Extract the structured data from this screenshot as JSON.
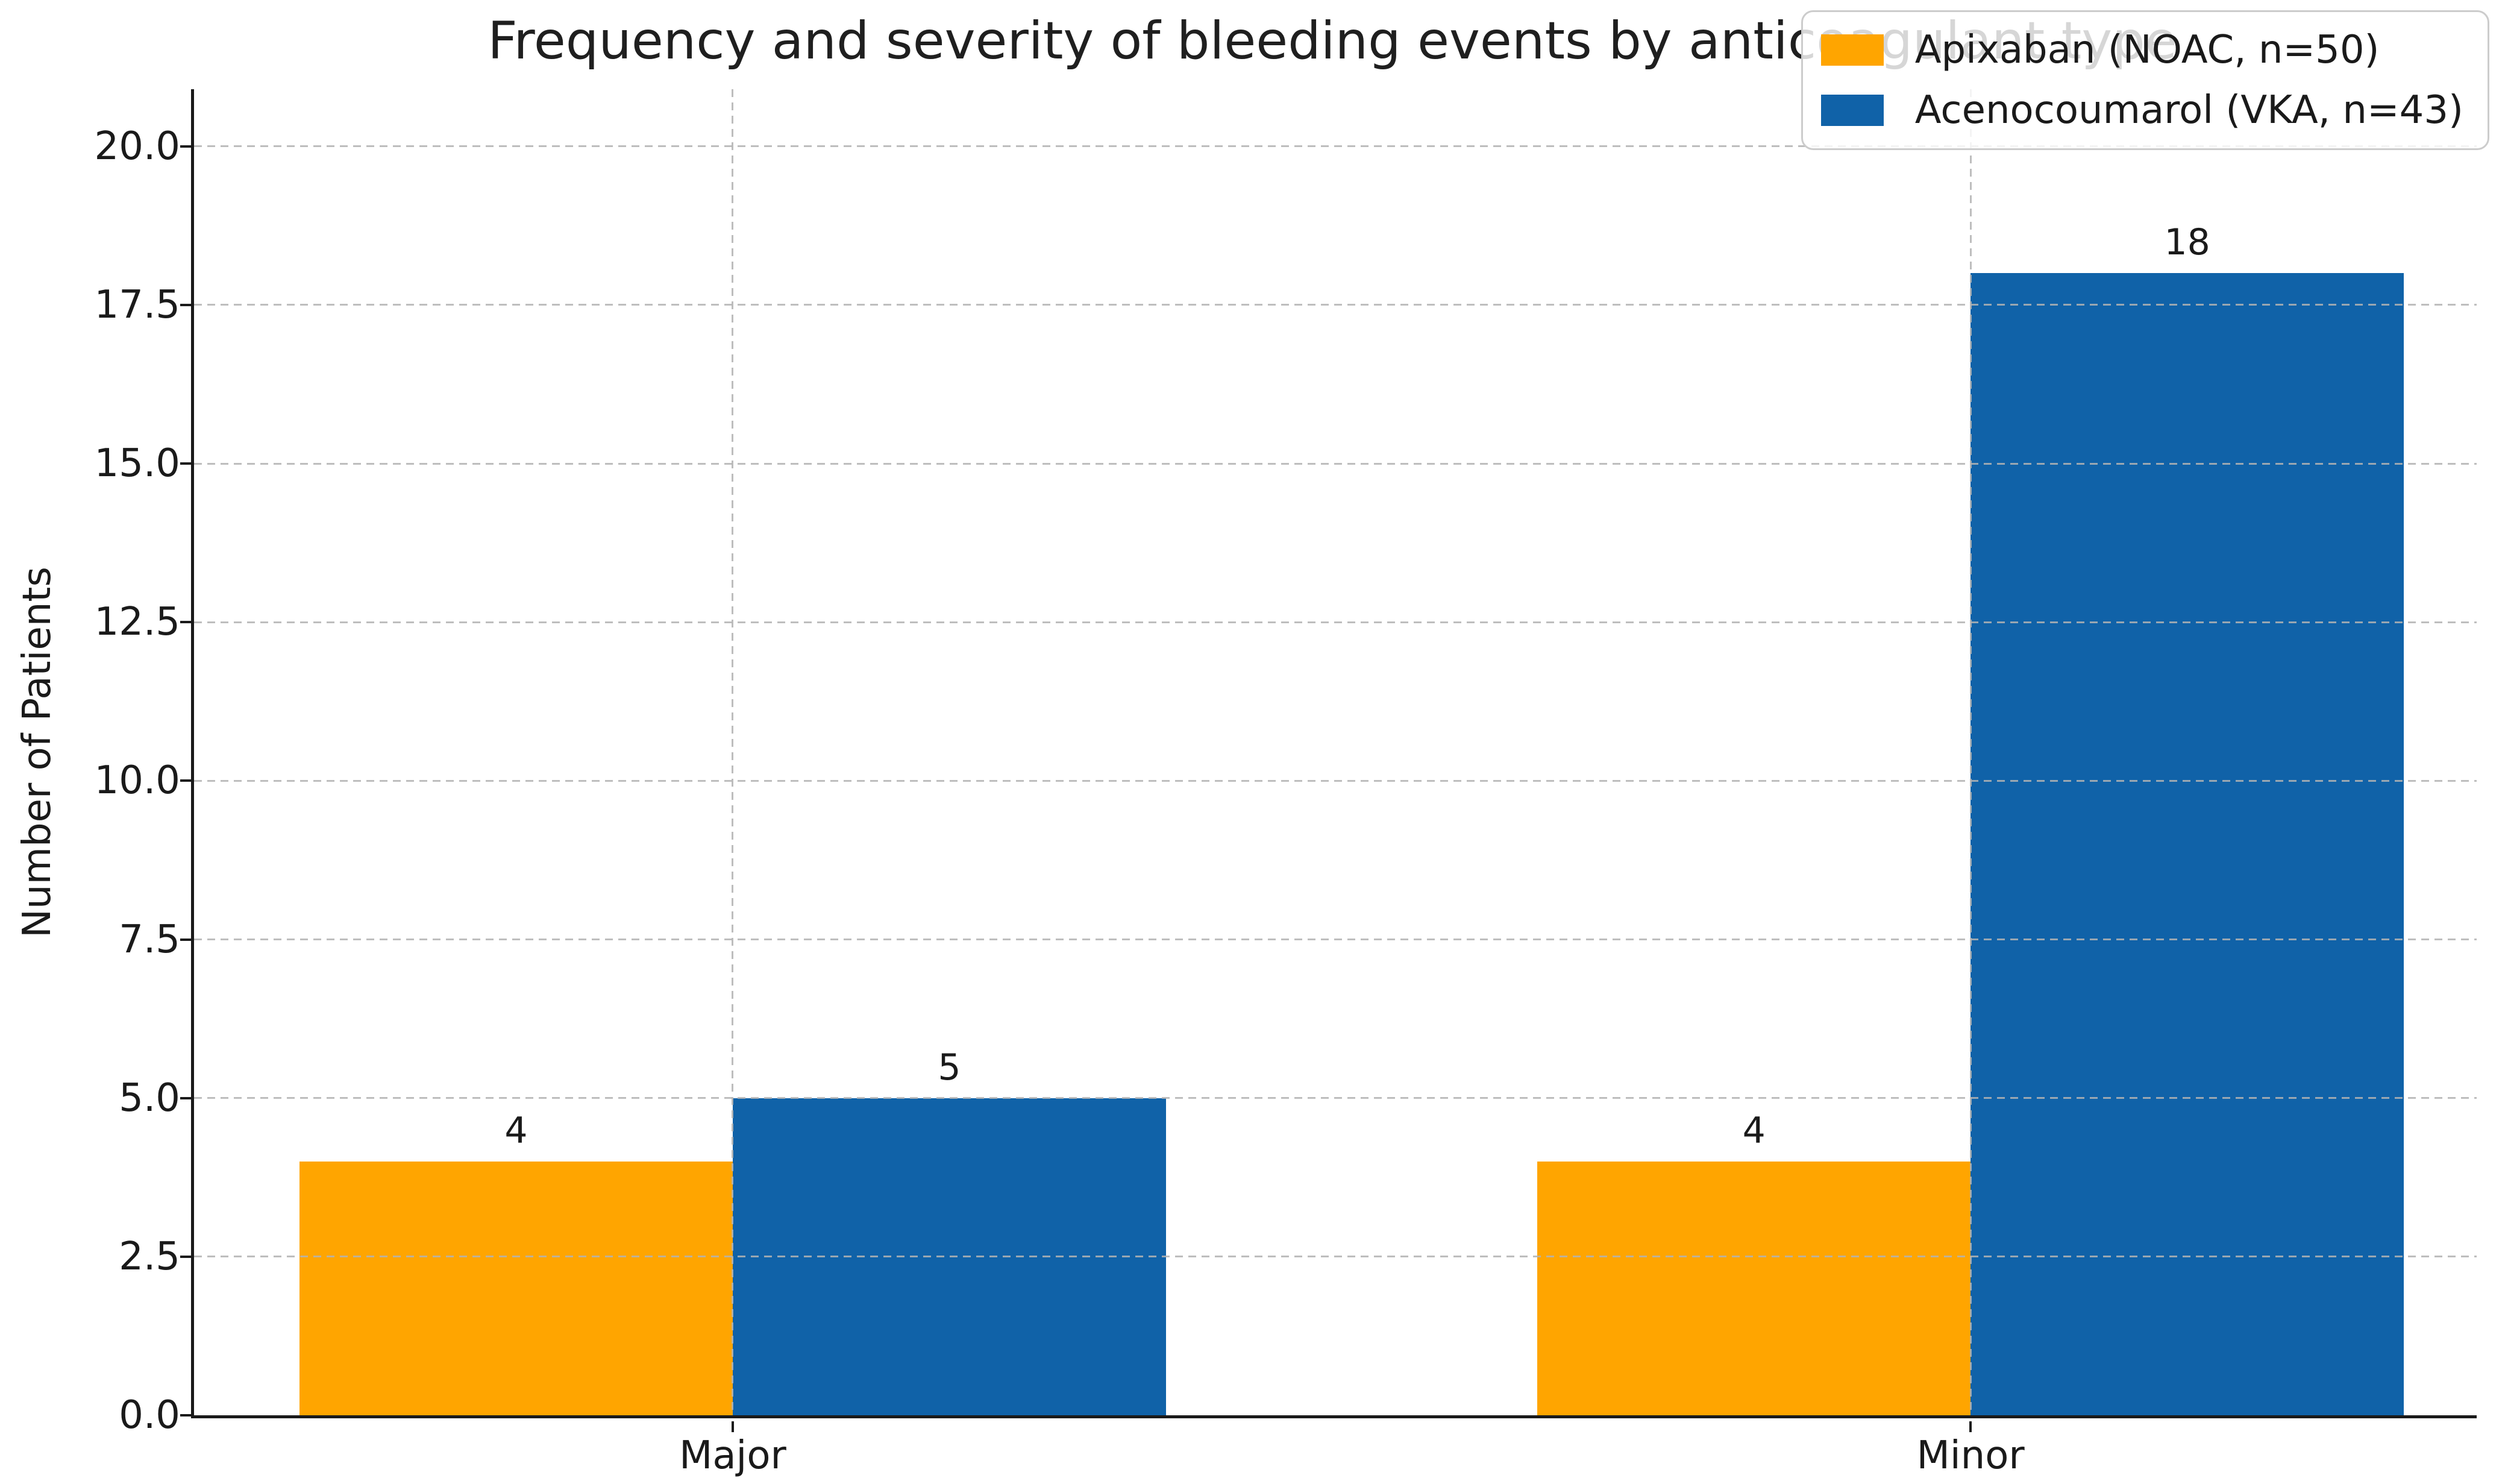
{
  "chart_data": {
    "type": "bar",
    "title": "Frequency and severity of bleeding events by anticoagulant type",
    "xlabel": "",
    "ylabel": "Number of Patients",
    "categories": [
      "Major",
      "Minor"
    ],
    "series": [
      {
        "name": "Apixaban (NOAC, n=50)",
        "color": "#ffa500",
        "values": [
          4,
          4
        ]
      },
      {
        "name": "Acenocoumarol (VKA, n=43)",
        "color": "#1062a8",
        "values": [
          5,
          18
        ]
      }
    ],
    "bar_value_labels": [
      [
        "4",
        "5"
      ],
      [
        "4",
        "18"
      ]
    ],
    "yticks": [
      0.0,
      2.5,
      5.0,
      7.5,
      10.0,
      12.5,
      15.0,
      17.5,
      20.0
    ],
    "ytick_labels": [
      "0.0",
      "2.5",
      "5.0",
      "7.5",
      "10.0",
      "12.5",
      "15.0",
      "17.5",
      "20.0"
    ],
    "ylim": [
      0,
      20.9
    ],
    "grid": {
      "visible": true,
      "style": "dashed",
      "axes": "both",
      "color": "#b3b3b3",
      "over_bars": true
    },
    "legend": {
      "position": "upper right",
      "entries": [
        "Apixaban (NOAC, n=50)",
        "Acenocoumarol (VKA, n=43)"
      ]
    },
    "spine_color": "#1a1a1a",
    "text_color": "#1a1a1a"
  }
}
